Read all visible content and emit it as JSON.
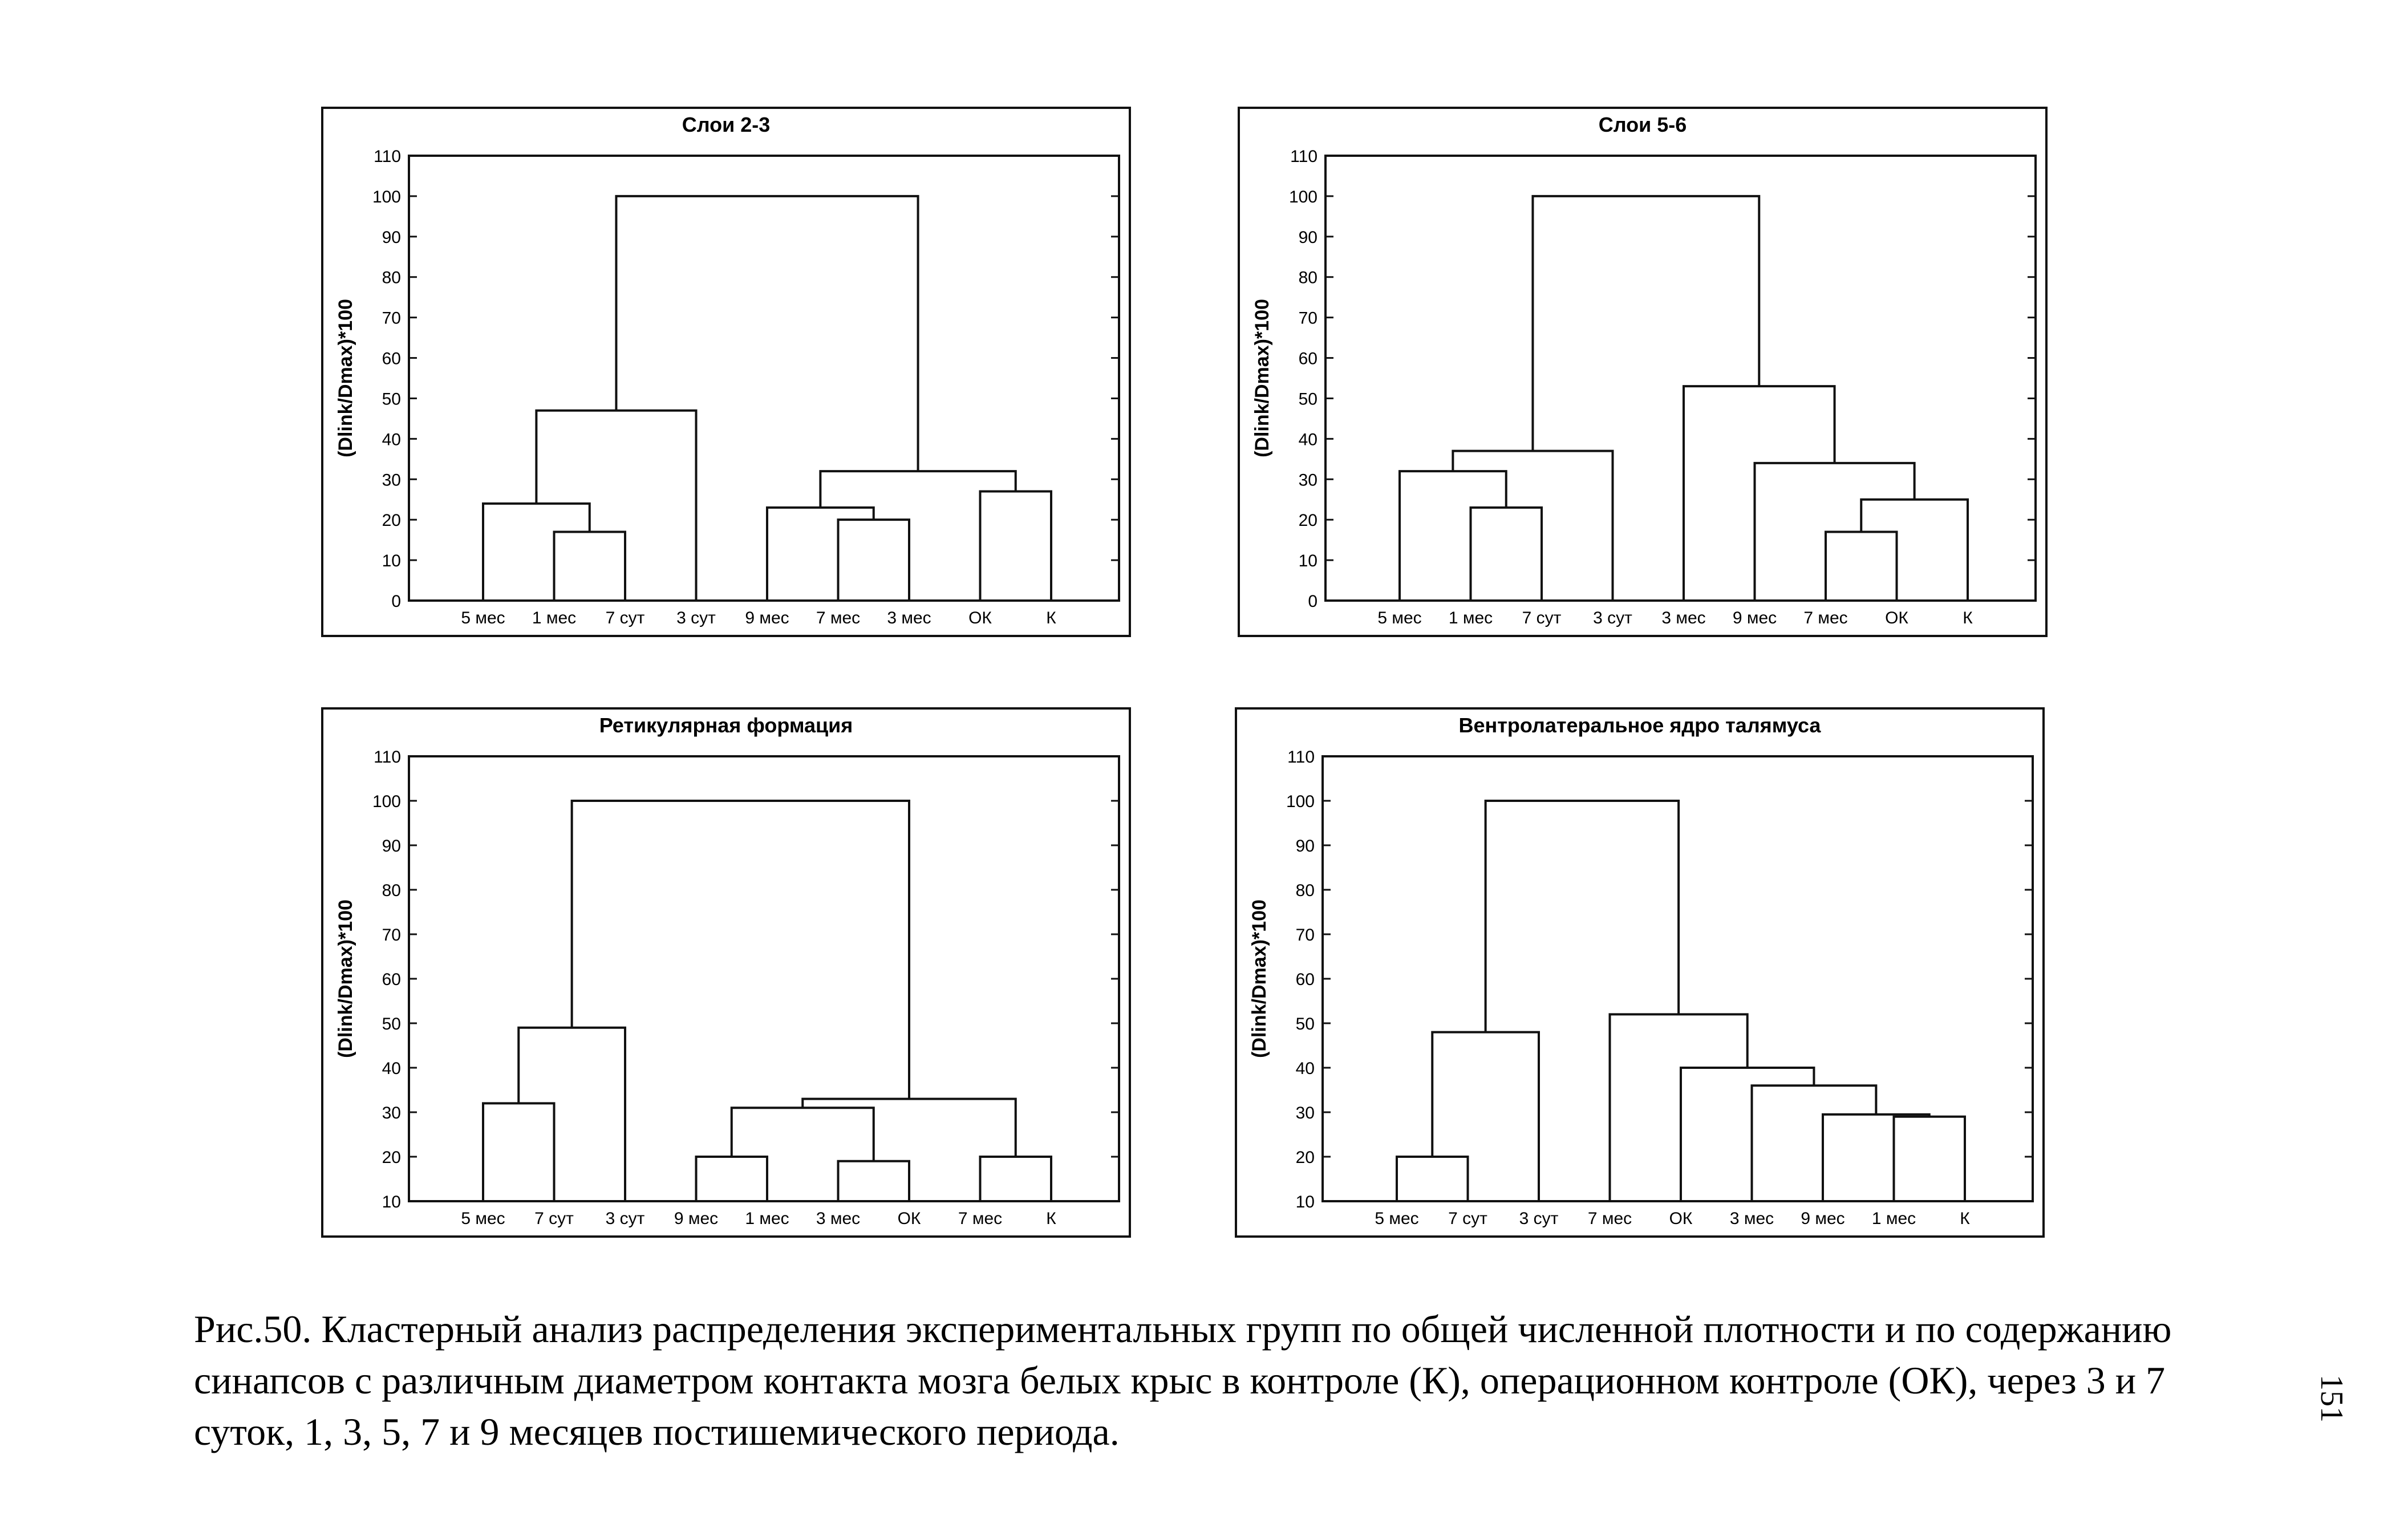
{
  "chart_data": [
    {
      "type": "dendrogram",
      "title": "Слои 2-3",
      "ylabel": "(Dlink/Dmax)*100",
      "ylim": [
        0,
        110
      ],
      "yticks": [
        0,
        10,
        20,
        30,
        40,
        50,
        60,
        70,
        80,
        90,
        100,
        110
      ],
      "leaves": [
        "5 мес",
        "1 мес",
        "7 сут",
        "3 сут",
        "9 мес",
        "7 мес",
        "3 мес",
        "ОК",
        "К"
      ],
      "merges": [
        {
          "a": [
            1
          ],
          "b": [
            2
          ],
          "height": 17
        },
        {
          "a": [
            0
          ],
          "b": [
            1,
            2
          ],
          "height": 24
        },
        {
          "a": [
            0,
            1,
            2
          ],
          "b": [
            3
          ],
          "height": 47
        },
        {
          "a": [
            5
          ],
          "b": [
            6
          ],
          "height": 20
        },
        {
          "a": [
            4
          ],
          "b": [
            5,
            6
          ],
          "height": 23
        },
        {
          "a": [
            7
          ],
          "b": [
            8
          ],
          "height": 27
        },
        {
          "a": [
            4,
            5,
            6
          ],
          "b": [
            7,
            8
          ],
          "height": 32
        },
        {
          "a": [
            0,
            1,
            2,
            3
          ],
          "b": [
            4,
            5,
            6,
            7,
            8
          ],
          "height": 100
        }
      ]
    },
    {
      "type": "dendrogram",
      "title": "Слои 5-6",
      "ylabel": "(Dlink/Dmax)*100",
      "ylim": [
        0,
        110
      ],
      "yticks": [
        0,
        10,
        20,
        30,
        40,
        50,
        60,
        70,
        80,
        90,
        100,
        110
      ],
      "leaves": [
        "5 мес",
        "1 мес",
        "7 сут",
        "3 сут",
        "3 мес",
        "9 мес",
        "7 мес",
        "ОК",
        "К"
      ],
      "merges": [
        {
          "a": [
            1
          ],
          "b": [
            2
          ],
          "height": 23
        },
        {
          "a": [
            0
          ],
          "b": [
            1,
            2
          ],
          "height": 32
        },
        {
          "a": [
            0,
            1,
            2
          ],
          "b": [
            3
          ],
          "height": 37
        },
        {
          "a": [
            6
          ],
          "b": [
            7
          ],
          "height": 17
        },
        {
          "a": [
            6,
            7
          ],
          "b": [
            8
          ],
          "height": 25
        },
        {
          "a": [
            5
          ],
          "b": [
            6,
            7,
            8
          ],
          "height": 34
        },
        {
          "a": [
            4
          ],
          "b": [
            5,
            6,
            7,
            8
          ],
          "height": 53
        },
        {
          "a": [
            0,
            1,
            2,
            3
          ],
          "b": [
            4,
            5,
            6,
            7,
            8
          ],
          "height": 100
        }
      ]
    },
    {
      "type": "dendrogram",
      "title": "Ретикулярная формация",
      "ylabel": "(Dlink/Dmax)*100",
      "ylim": [
        10,
        110
      ],
      "yticks": [
        10,
        20,
        30,
        40,
        50,
        60,
        70,
        80,
        90,
        100,
        110
      ],
      "leaves": [
        "5 мес",
        "7 сут",
        "3 сут",
        "9 мес",
        "1 мес",
        "3 мес",
        "ОК",
        "7 мес",
        "К"
      ],
      "merges": [
        {
          "a": [
            0
          ],
          "b": [
            1
          ],
          "height": 32
        },
        {
          "a": [
            0,
            1
          ],
          "b": [
            2
          ],
          "height": 49
        },
        {
          "a": [
            3
          ],
          "b": [
            4
          ],
          "height": 20
        },
        {
          "a": [
            5
          ],
          "b": [
            6
          ],
          "height": 19
        },
        {
          "a": [
            3,
            4
          ],
          "b": [
            5,
            6
          ],
          "height": 31
        },
        {
          "a": [
            7
          ],
          "b": [
            8
          ],
          "height": 20
        },
        {
          "a": [
            3,
            4,
            5,
            6
          ],
          "b": [
            7,
            8
          ],
          "height": 33
        },
        {
          "a": [
            0,
            1,
            2
          ],
          "b": [
            3,
            4,
            5,
            6,
            7,
            8
          ],
          "height": 100
        }
      ]
    },
    {
      "type": "dendrogram",
      "title": "Вентролатеральное ядро талямуса",
      "ylabel": "(Dlink/Dmax)*100",
      "ylim": [
        10,
        110
      ],
      "yticks": [
        10,
        20,
        30,
        40,
        50,
        60,
        70,
        80,
        90,
        100,
        110
      ],
      "leaves": [
        "5 мес",
        "7 сут",
        "3 сут",
        "7 мес",
        "ОК",
        "3 мес",
        "9 мес",
        "1 мес",
        "К"
      ],
      "merges": [
        {
          "a": [
            0
          ],
          "b": [
            1
          ],
          "height": 20
        },
        {
          "a": [
            0,
            1
          ],
          "b": [
            2
          ],
          "height": 48
        },
        {
          "a": [
            7
          ],
          "b": [
            8
          ],
          "height": 29
        },
        {
          "a": [
            6
          ],
          "b": [
            7,
            8
          ],
          "height": 29.5
        },
        {
          "a": [
            5
          ],
          "b": [
            6,
            7,
            8
          ],
          "height": 36
        },
        {
          "a": [
            4
          ],
          "b": [
            5,
            6,
            7,
            8
          ],
          "height": 40
        },
        {
          "a": [
            3
          ],
          "b": [
            4,
            5,
            6,
            7,
            8
          ],
          "height": 52
        },
        {
          "a": [
            0,
            1,
            2
          ],
          "b": [
            3,
            4,
            5,
            6,
            7,
            8
          ],
          "height": 100
        }
      ]
    }
  ],
  "caption": "Рис.50. Кластерный анализ распределения экспериментальных групп по общей численной плотности и по содержанию синапсов с различным диаметром контакта мозга белых крыс в контроле (К), операционном контроле (ОК), через 3 и 7 суток, 1, 3, 5, 7 и 9 месяцев постишемического периода.",
  "page_number": "151"
}
